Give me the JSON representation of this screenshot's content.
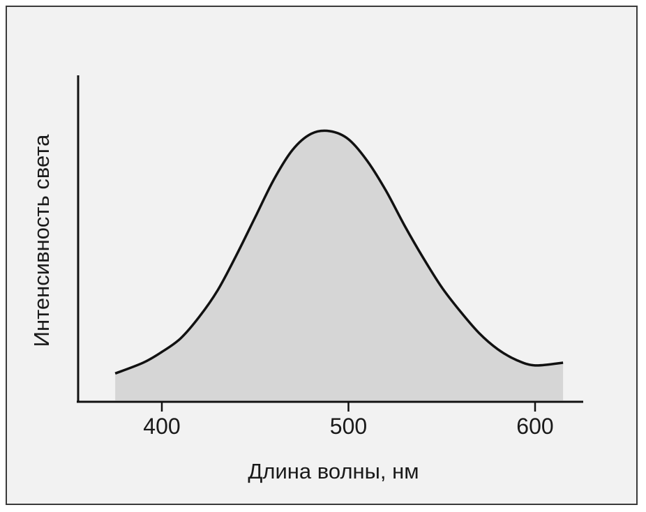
{
  "chart_data": {
    "type": "area",
    "title": "",
    "xlabel": "Длина волны, нм",
    "ylabel": "Интенсивность света",
    "xlim": [
      355,
      625
    ],
    "ylim": [
      0,
      1.05
    ],
    "xticks": [
      400,
      500,
      600
    ],
    "xtick_labels": [
      "400",
      "500",
      "600"
    ],
    "yticks": [],
    "grid": false,
    "legend": "none",
    "colors": {
      "line": "#111111",
      "fill": "#d6d6d6",
      "background": "#f2f2f2"
    },
    "series": [
      {
        "x": [
          375,
          390,
          400,
          410,
          420,
          430,
          440,
          450,
          460,
          470,
          480,
          490,
          500,
          510,
          520,
          530,
          540,
          550,
          560,
          570,
          580,
          590,
          600,
          615
        ],
        "values": [
          0.1,
          0.14,
          0.18,
          0.23,
          0.31,
          0.41,
          0.54,
          0.68,
          0.82,
          0.93,
          0.99,
          1.0,
          0.97,
          0.89,
          0.78,
          0.65,
          0.53,
          0.42,
          0.33,
          0.25,
          0.19,
          0.15,
          0.13,
          0.14
        ]
      }
    ]
  }
}
